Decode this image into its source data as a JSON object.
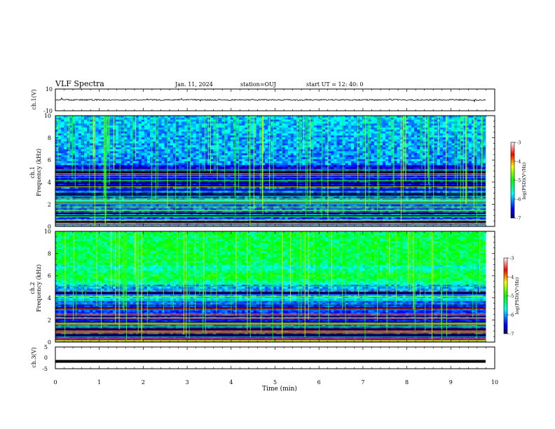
{
  "header": {
    "title": "VLF Spectra",
    "date": "Jan. 11, 2024",
    "station": "station=OUJ",
    "start": "start  UT  =   12: 40: 0"
  },
  "chart_data": [
    {
      "type": "line",
      "name": "ch1-waveform",
      "ylabel": "ch.1(V)",
      "ylim": [
        -10,
        10
      ],
      "yticks": [
        "10",
        "-10"
      ],
      "xlim": [
        0,
        10
      ],
      "baseline": 0,
      "amplitude": 1.2
    },
    {
      "type": "heatmap",
      "name": "ch1-spectrogram",
      "ylabel_top": "ch.1",
      "ylabel": "Frequency  (kHz)",
      "ylim": [
        0,
        10
      ],
      "yticks": [
        "0",
        "2",
        "4",
        "6",
        "8",
        "10"
      ],
      "xlim": [
        0,
        9.8
      ],
      "colorbar": {
        "label": "log(PSD)(V²/Hz)",
        "ticks": [
          "-3",
          "-4",
          "-5",
          "-6",
          "-7"
        ],
        "range": [
          -7,
          -3
        ]
      }
    },
    {
      "type": "heatmap",
      "name": "ch2-spectrogram",
      "ylabel_top": "ch.2",
      "ylabel": "Frequency  (kHz)",
      "ylim": [
        0,
        10
      ],
      "yticks": [
        "0",
        "2",
        "4",
        "6",
        "8",
        "10"
      ],
      "xlim": [
        0,
        9.8
      ],
      "colorbar": {
        "label": "log(PSD)(V²/Hz)",
        "ticks": [
          "-3",
          "-4",
          "-5",
          "-6",
          "-7"
        ],
        "range": [
          -7,
          -3
        ]
      }
    },
    {
      "type": "line",
      "name": "ch3-level",
      "ylabel": "ch.3(V)",
      "ylim": [
        -5,
        5
      ],
      "yticks": [
        "5",
        "0",
        "-5"
      ],
      "level": -1.6
    }
  ],
  "xaxis": {
    "label": "Time  (min)",
    "ticks": [
      "0",
      "1",
      "2",
      "3",
      "4",
      "5",
      "6",
      "7",
      "8",
      "9",
      "10"
    ]
  }
}
